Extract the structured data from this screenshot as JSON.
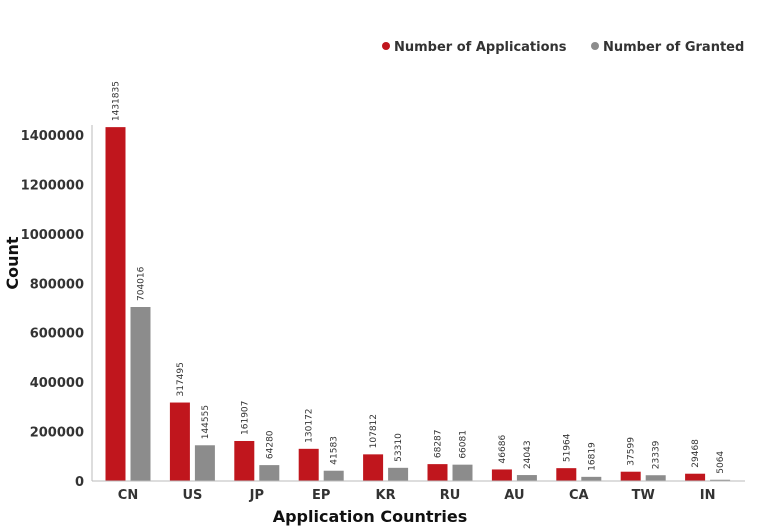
{
  "chart_data": {
    "type": "bar",
    "title": "",
    "xlabel": "Application Countries",
    "ylabel": "Count",
    "ylim": [
      0,
      1450000
    ],
    "yticks": [
      0,
      200000,
      400000,
      600000,
      800000,
      1000000,
      1200000,
      1400000
    ],
    "legend_position": "top-right",
    "categories": [
      "CN",
      "US",
      "JP",
      "EP",
      "KR",
      "RU",
      "AU",
      "CA",
      "TW",
      "IN"
    ],
    "series": [
      {
        "name": "Number of Applications",
        "color": "#c0161d",
        "values": [
          1431835,
          317495,
          161907,
          130172,
          107812,
          68287,
          46686,
          51964,
          37599,
          29468
        ]
      },
      {
        "name": "Number of Granted",
        "color": "#8c8c8c",
        "values": [
          704016,
          144555,
          64280,
          41583,
          53310,
          66081,
          24043,
          16819,
          23339,
          5064
        ]
      }
    ]
  }
}
